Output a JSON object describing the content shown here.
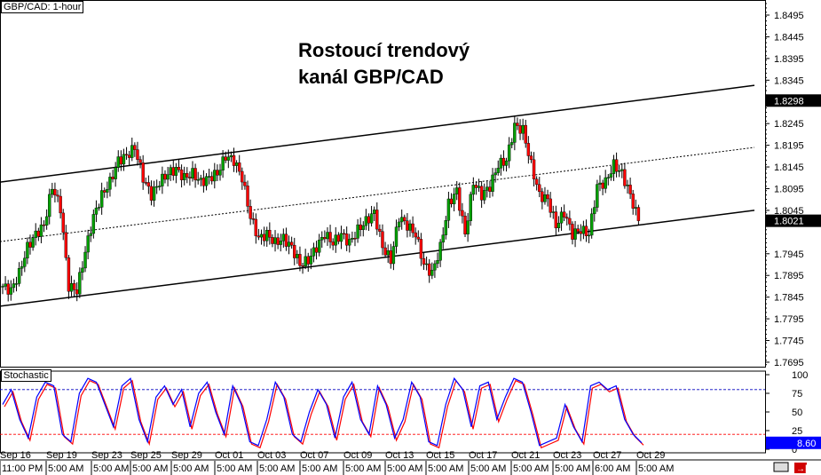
{
  "symbol_label": "GBP/CAD: 1-hour",
  "annotation": [
    "Rostoucí trendový",
    "kanál GBP/CAD"
  ],
  "indicator_label": "Stochastic",
  "chart_data": {
    "type": "candlestick",
    "price_axis": {
      "ticks": [
        "1.8495",
        "1.8445",
        "1.8395",
        "1.8345",
        "1.8245",
        "1.8195",
        "1.8145",
        "1.8095",
        "1.8045",
        "1.7945",
        "1.7895",
        "1.7845",
        "1.7795",
        "1.7745",
        "1.7695"
      ],
      "range": [
        1.768,
        1.853
      ]
    },
    "price_markers": {
      "channel_high": "1.8298",
      "current": "1.8021"
    },
    "date_labels": [
      "Sep 16",
      "Sep 19",
      "Sep 23",
      "Sep 25",
      "Sep 29",
      "Oct 01",
      "Oct 03",
      "Oct 07",
      "Oct 09",
      "Oct 13",
      "Oct 15",
      "Oct 17",
      "Oct 21",
      "Oct 23",
      "Oct 27",
      "Oct 29"
    ],
    "time_labels": [
      "11:00 PM",
      "5:00 AM",
      "5:00 AM",
      "5:00 AM",
      "5:00 AM",
      "5:00 AM",
      "5:00 AM",
      "5:00 AM",
      "5:00 AM",
      "5:00 AM",
      "5:00 AM",
      "5:00 AM",
      "5:00 AM",
      "5:00 AM",
      "6:00 AM",
      "5:00 AM"
    ],
    "closes": [
      1.787,
      1.786,
      1.79,
      1.796,
      1.799,
      1.801,
      1.81,
      1.805,
      1.787,
      1.786,
      1.795,
      1.803,
      1.808,
      1.811,
      1.816,
      1.817,
      1.819,
      1.812,
      1.808,
      1.811,
      1.813,
      1.814,
      1.812,
      1.813,
      1.811,
      1.812,
      1.813,
      1.817,
      1.816,
      1.812,
      1.803,
      1.798,
      1.799,
      1.797,
      1.798,
      1.796,
      1.792,
      1.793,
      1.796,
      1.799,
      1.797,
      1.799,
      1.797,
      1.8,
      1.802,
      1.804,
      1.796,
      1.793,
      1.803,
      1.801,
      1.799,
      1.792,
      1.79,
      1.796,
      1.806,
      1.809,
      1.799,
      1.811,
      1.808,
      1.81,
      1.815,
      1.816,
      1.824,
      1.823,
      1.815,
      1.808,
      1.807,
      1.801,
      1.804,
      1.799,
      1.8,
      1.799,
      1.81,
      1.811,
      1.815,
      1.813,
      1.808,
      1.8021
    ],
    "channel": {
      "upper": [
        1.811,
        1.8333
      ],
      "middle": [
        1.7973,
        1.819
      ],
      "lower": [
        1.7824,
        1.8045
      ]
    },
    "stochastic": {
      "axis_ticks": [
        "100",
        "75",
        "50",
        "25",
        "0"
      ],
      "levels": [
        80,
        20
      ],
      "current": "8.60",
      "values": [
        60,
        80,
        40,
        15,
        70,
        90,
        85,
        20,
        10,
        75,
        95,
        90,
        60,
        30,
        85,
        95,
        40,
        10,
        70,
        85,
        60,
        80,
        30,
        75,
        90,
        50,
        20,
        85,
        60,
        10,
        5,
        40,
        90,
        70,
        20,
        10,
        50,
        80,
        60,
        15,
        70,
        90,
        40,
        20,
        85,
        60,
        15,
        40,
        90,
        70,
        10,
        5,
        60,
        95,
        80,
        30,
        85,
        90,
        40,
        70,
        95,
        90,
        50,
        5,
        10,
        15,
        60,
        30,
        10,
        85,
        90,
        80,
        85,
        40,
        20,
        8.6
      ],
      "colors": {
        "main": "#0000ff",
        "signal": "#ff0000"
      }
    },
    "colors": {
      "bull": "#00a000",
      "bear": "#ff0000",
      "wick": "#000000"
    }
  }
}
